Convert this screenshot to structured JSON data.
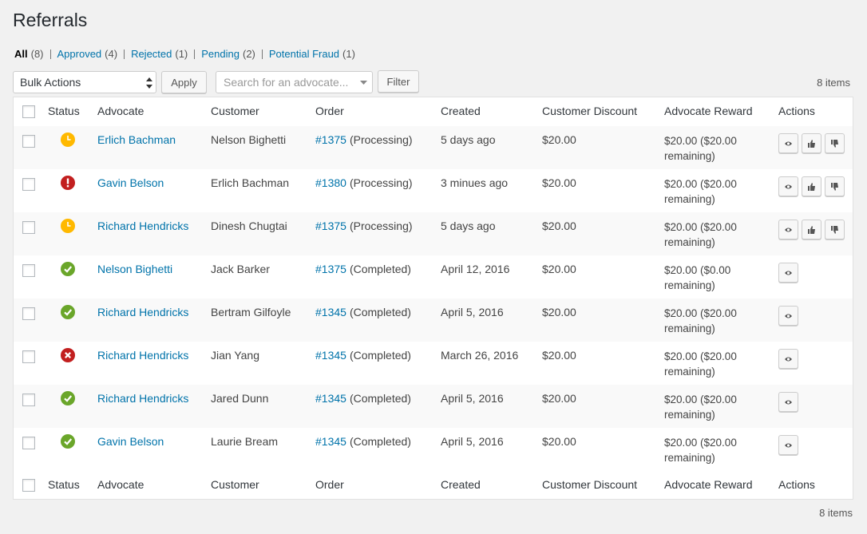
{
  "title": "Referrals",
  "filters": [
    {
      "label": "All",
      "count": "(8)"
    },
    {
      "label": "Approved",
      "count": "(4)"
    },
    {
      "label": "Rejected",
      "count": "(1)"
    },
    {
      "label": "Pending",
      "count": "(2)"
    },
    {
      "label": "Potential Fraud",
      "count": "(1)"
    }
  ],
  "toolbar": {
    "bulk_actions": "Bulk Actions",
    "apply": "Apply",
    "search_placeholder": "Search for an advocate...",
    "filter": "Filter",
    "items_count": "8 items"
  },
  "table": {
    "columns": [
      "Status",
      "Advocate",
      "Customer",
      "Order",
      "Created",
      "Customer Discount",
      "Advocate Reward",
      "Actions"
    ],
    "rows": [
      {
        "advocate": "Erlich Bachman",
        "customer": "Nelson Bighetti",
        "order_number": "#1375",
        "order_status": "(Processing)",
        "created": "5 days ago",
        "customer_discount": "$20.00",
        "advocate_reward": "$20.00 ($20.00 remaining)"
      },
      {
        "advocate": "Gavin Belson",
        "customer": "Erlich Bachman",
        "order_number": "#1380",
        "order_status": "(Processing)",
        "created": "3 minues ago",
        "customer_discount": "$20.00",
        "advocate_reward": "$20.00 ($20.00 remaining)"
      },
      {
        "advocate": "Richard Hendricks",
        "customer": "Dinesh Chugtai",
        "order_number": "#1375",
        "order_status": "(Processing)",
        "created": "5 days ago",
        "customer_discount": "$20.00",
        "advocate_reward": "$20.00 ($20.00 remaining)"
      },
      {
        "advocate": "Nelson Bighetti",
        "customer": "Jack Barker",
        "order_number": "#1375",
        "order_status": "(Completed)",
        "created": "April 12, 2016",
        "customer_discount": "$20.00",
        "advocate_reward": "$20.00 ($0.00 remaining)"
      },
      {
        "advocate": "Richard Hendricks",
        "customer": "Bertram Gilfoyle",
        "order_number": "#1345",
        "order_status": "(Completed)",
        "created": "April 5, 2016",
        "customer_discount": "$20.00",
        "advocate_reward": "$20.00 ($20.00 remaining)"
      },
      {
        "advocate": "Richard Hendricks",
        "customer": "Jian Yang",
        "order_number": "#1345",
        "order_status": "(Completed)",
        "created": "March 26, 2016",
        "customer_discount": "$20.00",
        "advocate_reward": "$20.00 ($20.00 remaining)"
      },
      {
        "advocate": "Richard Hendricks",
        "customer": "Jared Dunn",
        "order_number": "#1345",
        "order_status": "(Completed)",
        "created": "April 5, 2016",
        "customer_discount": "$20.00",
        "advocate_reward": "$20.00 ($20.00 remaining)"
      },
      {
        "advocate": "Gavin Belson",
        "customer": "Laurie Bream",
        "order_number": "#1345",
        "order_status": "(Completed)",
        "created": "April 5, 2016",
        "customer_discount": "$20.00",
        "advocate_reward": "$20.00 ($20.00 remaining)"
      }
    ]
  }
}
